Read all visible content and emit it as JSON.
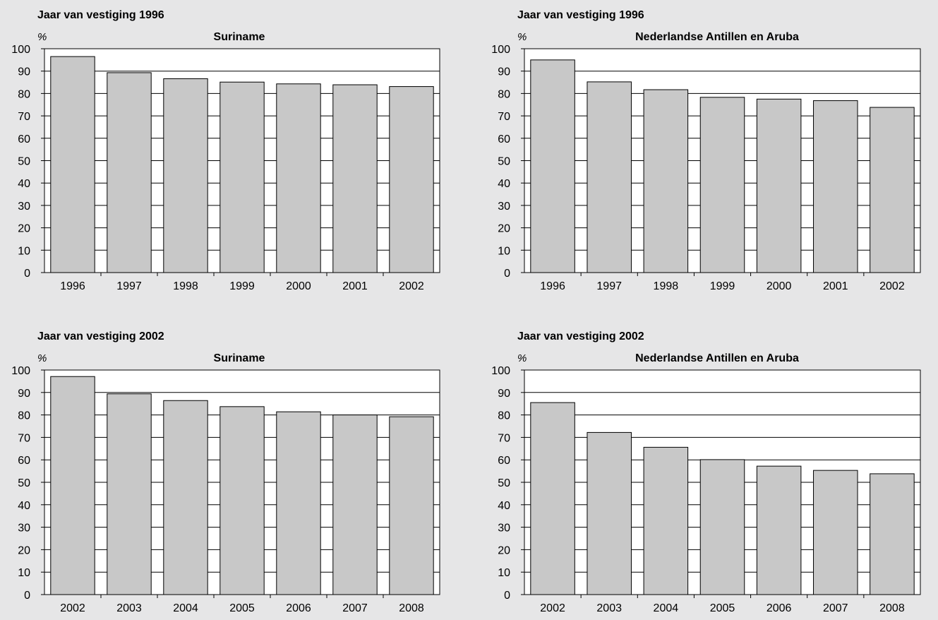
{
  "chart_data": [
    {
      "type": "bar",
      "heading": "Jaar van vestiging 1996",
      "title": "Suriname",
      "ylabel": "%",
      "xlabel": "",
      "ylim": [
        0,
        100
      ],
      "yticks": [
        0,
        10,
        20,
        30,
        40,
        50,
        60,
        70,
        80,
        90,
        100
      ],
      "grid": true,
      "categories": [
        "1996",
        "1997",
        "1998",
        "1999",
        "2000",
        "2001",
        "2002"
      ],
      "values": [
        96.5,
        89.3,
        86.6,
        85.1,
        84.3,
        83.9,
        83.1
      ],
      "bar_color": "#c8c8c8"
    },
    {
      "type": "bar",
      "heading": "Jaar van vestiging 1996",
      "title": "Nederlandse Antillen en Aruba",
      "ylabel": "%",
      "xlabel": "",
      "ylim": [
        0,
        100
      ],
      "yticks": [
        0,
        10,
        20,
        30,
        40,
        50,
        60,
        70,
        80,
        90,
        100
      ],
      "grid": true,
      "categories": [
        "1996",
        "1997",
        "1998",
        "1999",
        "2000",
        "2001",
        "2002"
      ],
      "values": [
        95.0,
        85.2,
        81.7,
        78.3,
        77.5,
        76.8,
        73.8
      ],
      "bar_color": "#c8c8c8"
    },
    {
      "type": "bar",
      "heading": "Jaar van vestiging 2002",
      "title": "Suriname",
      "ylabel": "%",
      "xlabel": "",
      "ylim": [
        0,
        100
      ],
      "yticks": [
        0,
        10,
        20,
        30,
        40,
        50,
        60,
        70,
        80,
        90,
        100
      ],
      "grid": true,
      "categories": [
        "2002",
        "2003",
        "2004",
        "2005",
        "2006",
        "2007",
        "2008"
      ],
      "values": [
        97.1,
        89.4,
        86.4,
        83.7,
        81.4,
        80.0,
        79.2
      ],
      "bar_color": "#c8c8c8"
    },
    {
      "type": "bar",
      "heading": "Jaar van vestiging 2002",
      "title": "Nederlandse Antillen en Aruba",
      "ylabel": "%",
      "xlabel": "",
      "ylim": [
        0,
        100
      ],
      "yticks": [
        0,
        10,
        20,
        30,
        40,
        50,
        60,
        70,
        80,
        90,
        100
      ],
      "grid": true,
      "categories": [
        "2002",
        "2003",
        "2004",
        "2005",
        "2006",
        "2007",
        "2008"
      ],
      "values": [
        85.5,
        72.2,
        65.6,
        60.1,
        57.2,
        55.3,
        53.8
      ],
      "bar_color": "#c8c8c8"
    }
  ]
}
